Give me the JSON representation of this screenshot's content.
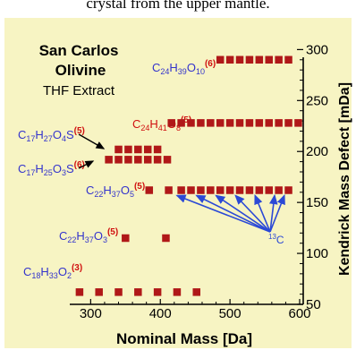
{
  "caption_partial": "crystal from the upper mantle.",
  "chart_data": {
    "type": "scatter",
    "title": [
      "San Carlos",
      "Olivine",
      "THF   Extract"
    ],
    "xlabel": "Nominal Mass [Da]",
    "ylabel": "Kendrick Mass Defect [mDa]",
    "xlim": [
      270,
      600
    ],
    "ylim": [
      50,
      310
    ],
    "xticks": [
      300,
      400,
      500,
      600
    ],
    "yticks": [
      50,
      100,
      150,
      200,
      250,
      300
    ],
    "marker_color": "#b01818",
    "series": [
      {
        "values": [
          [
            284,
            62
          ],
          [
            312,
            62
          ],
          [
            340,
            62
          ],
          [
            368,
            62
          ],
          [
            396,
            62
          ],
          [
            424,
            62
          ],
          [
            452,
            62
          ]
        ]
      },
      {
        "values": [
          [
            350,
            115
          ],
          [
            408,
            115
          ]
        ]
      },
      {
        "values": [
          [
            384,
            162
          ],
          [
            412,
            162
          ],
          [
            430,
            162
          ],
          [
            444,
            162
          ],
          [
            458,
            162
          ],
          [
            472,
            162
          ],
          [
            486,
            162
          ],
          [
            500,
            162
          ],
          [
            514,
            162
          ],
          [
            528,
            162
          ],
          [
            542,
            162
          ],
          [
            556,
            162
          ],
          [
            570,
            162
          ],
          [
            584,
            162
          ]
        ]
      },
      {
        "values": [
          [
            326,
            192
          ],
          [
            340,
            192
          ],
          [
            354,
            192
          ],
          [
            368,
            192
          ],
          [
            382,
            192
          ],
          [
            396,
            192
          ],
          [
            410,
            192
          ]
        ]
      },
      {
        "values": [
          [
            340,
            202
          ],
          [
            354,
            202
          ],
          [
            368,
            202
          ],
          [
            382,
            202
          ],
          [
            396,
            202
          ]
        ]
      },
      {
        "values": [
          [
            416,
            228
          ],
          [
            430,
            228
          ],
          [
            444,
            228
          ],
          [
            458,
            228
          ],
          [
            472,
            228
          ],
          [
            486,
            228
          ],
          [
            500,
            228
          ],
          [
            514,
            228
          ],
          [
            528,
            228
          ],
          [
            542,
            228
          ],
          [
            556,
            228
          ],
          [
            570,
            228
          ],
          [
            584,
            228
          ],
          [
            598,
            228
          ]
        ]
      },
      {
        "values": [
          [
            486,
            290
          ],
          [
            500,
            290
          ],
          [
            514,
            290
          ],
          [
            528,
            290
          ],
          [
            542,
            290
          ],
          [
            556,
            290
          ],
          [
            570,
            290
          ],
          [
            584,
            290
          ]
        ]
      }
    ],
    "isotope_label": "13C",
    "isotope_points": [
      [
        424,
        162
      ],
      [
        452,
        162
      ],
      [
        480,
        162
      ],
      [
        508,
        162
      ],
      [
        536,
        162
      ],
      [
        564,
        162
      ],
      [
        578,
        162
      ]
    ],
    "formula_labels": [
      {
        "text": "C24H39O10",
        "sup": "(6)",
        "color": "#3333cc"
      },
      {
        "text": "C24H41O8",
        "sup": "(5)",
        "color": "#d01010"
      },
      {
        "text": "C17H27O4S",
        "sup": "(5)",
        "color": "#3333cc"
      },
      {
        "text": "C17H25O3S",
        "sup": "(6)",
        "color": "#3333cc"
      },
      {
        "text": "C22H37O5",
        "sup": "(5)",
        "color": "#3333cc"
      },
      {
        "text": "C22H37O3",
        "sup": "(5)",
        "color": "#3333cc"
      },
      {
        "text": "C18H33O2",
        "sup": "(3)",
        "color": "#3333cc"
      }
    ]
  }
}
